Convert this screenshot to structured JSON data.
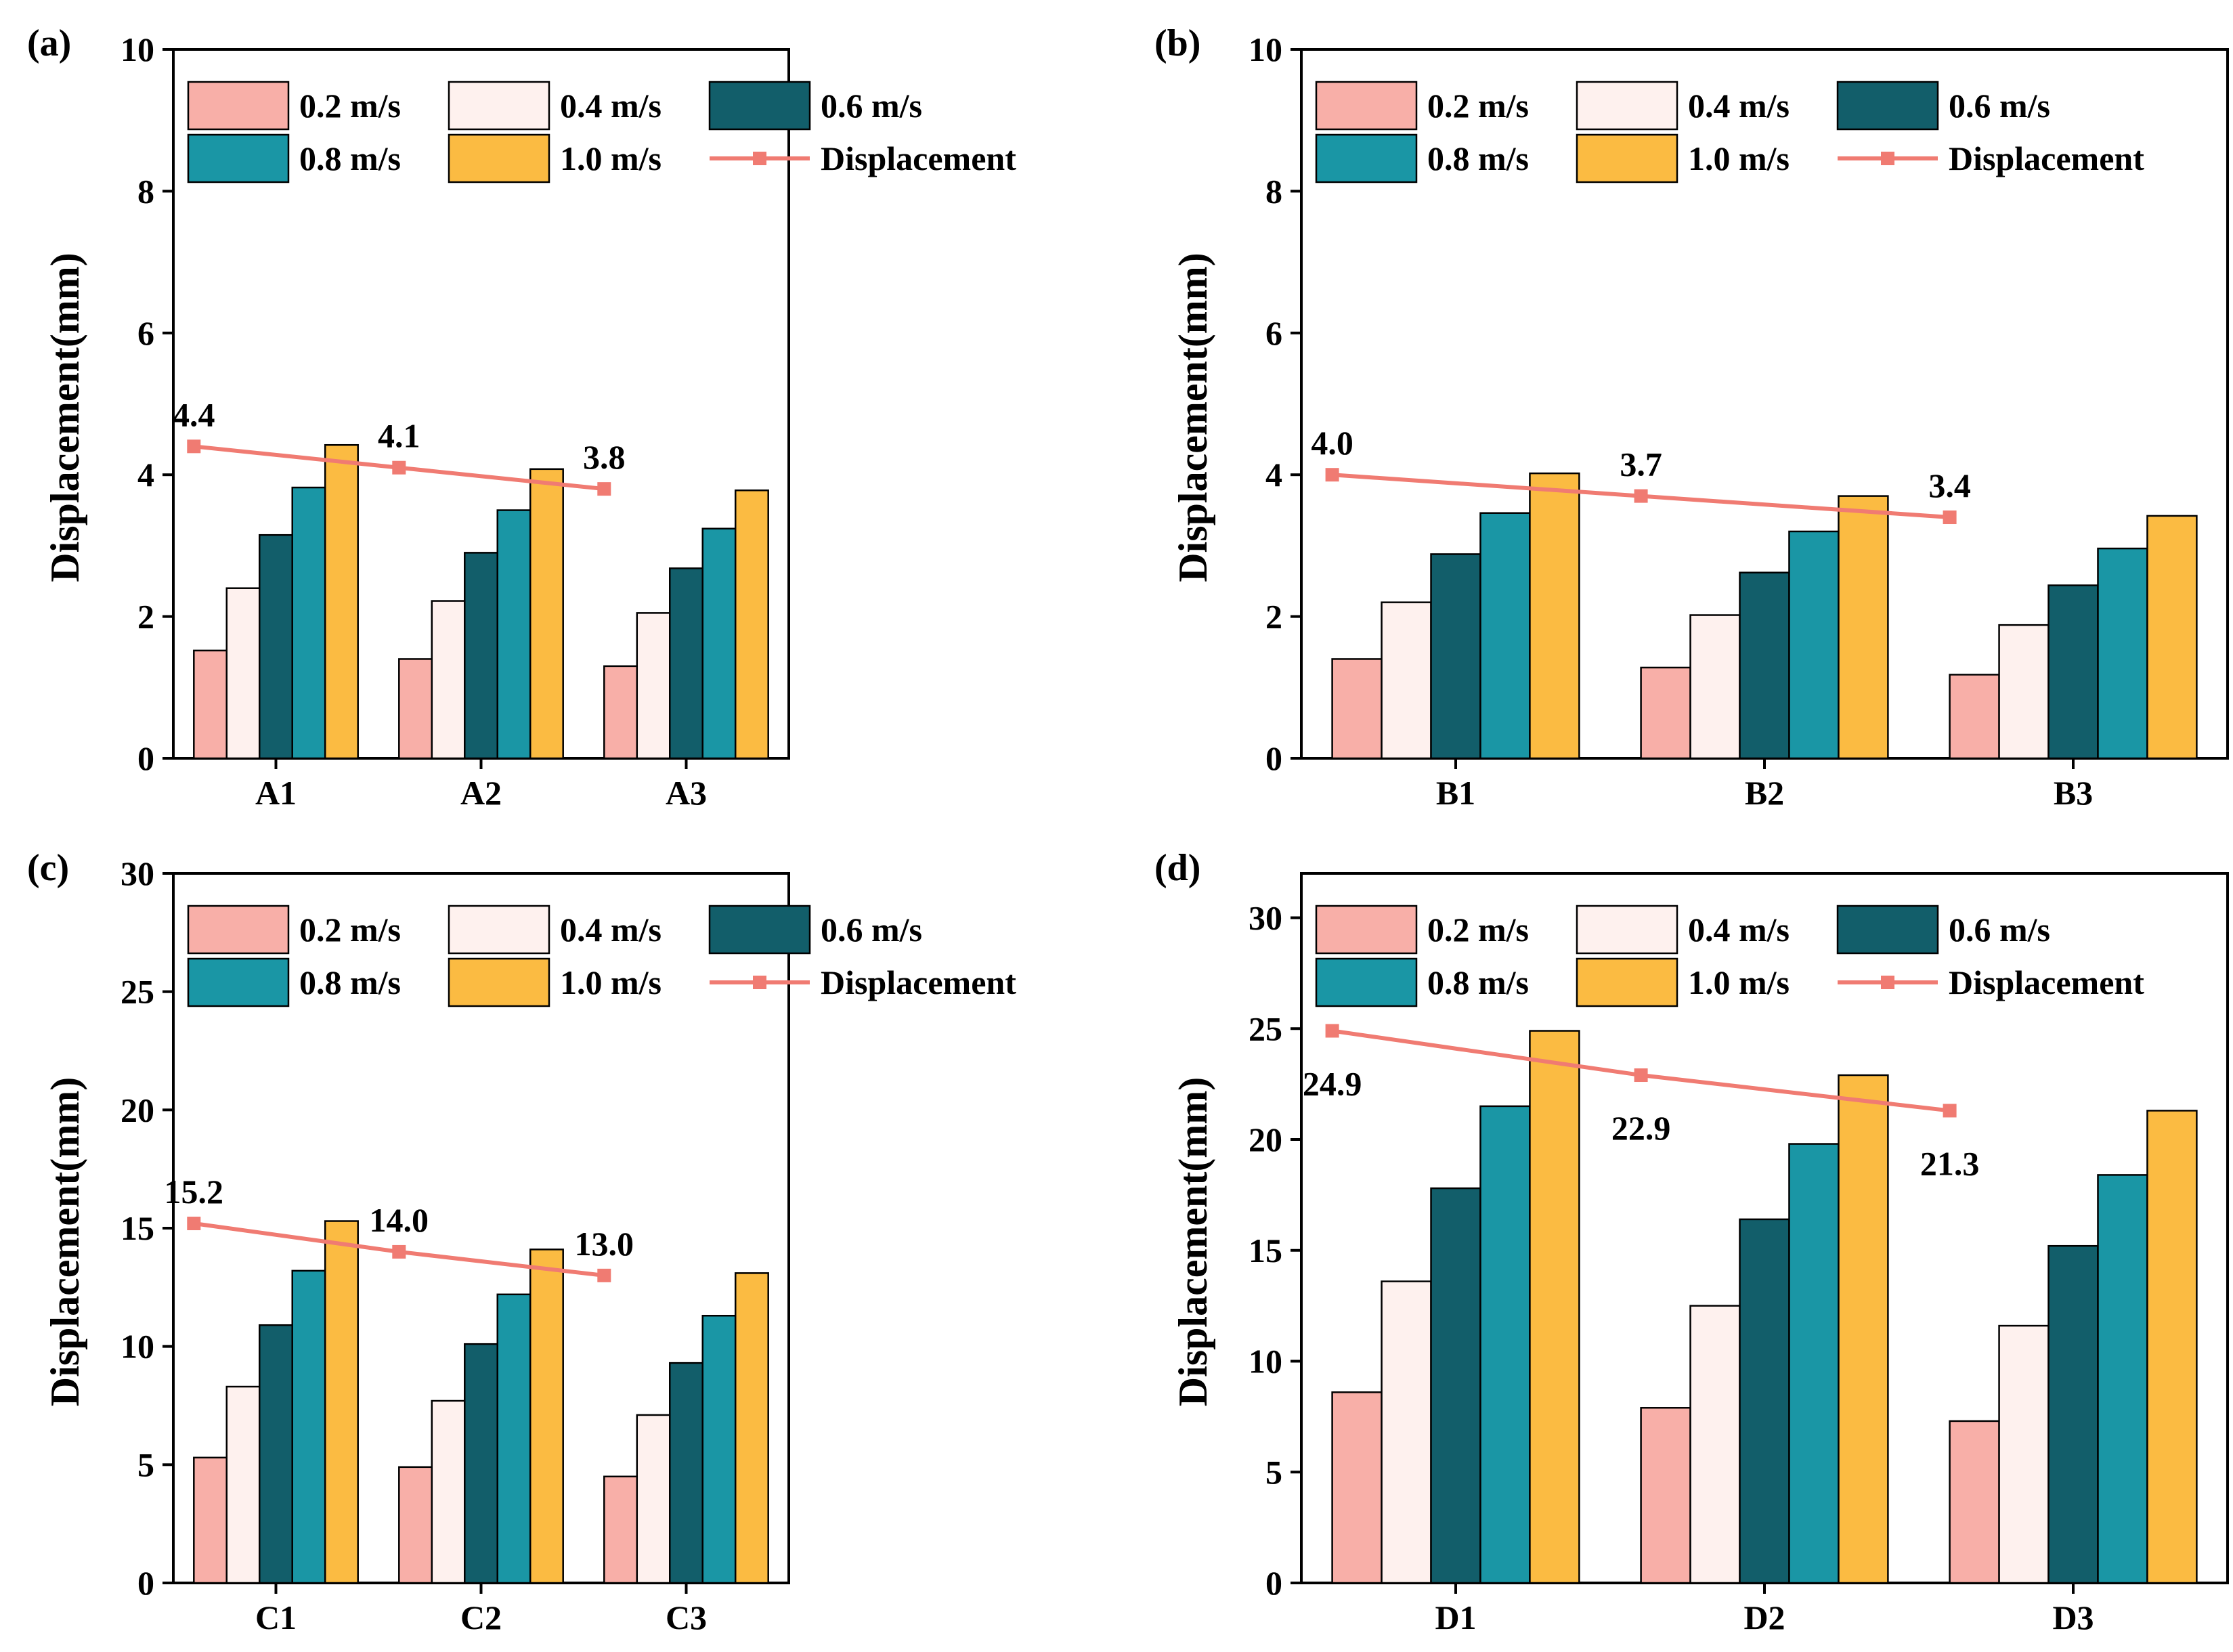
{
  "colors": {
    "s02": "#F8AFA8",
    "s04": "#FEF1EE",
    "s06": "#125E6A",
    "s08": "#1A96A5",
    "s10": "#FBBB42",
    "line": "#F07B72",
    "outline": "#000000"
  },
  "chart_data": [
    {
      "type": "bar",
      "panel": "(a)",
      "ylabel": "Displacement(mm)",
      "ylim": [
        0,
        10
      ],
      "yticks": [
        0,
        2,
        4,
        6,
        8,
        10
      ],
      "categories": [
        "A1",
        "A2",
        "A3"
      ],
      "series": [
        {
          "name": "0.2 m/s",
          "values": [
            1.52,
            1.4,
            1.3
          ]
        },
        {
          "name": "0.4 m/s",
          "values": [
            2.4,
            2.22,
            2.05
          ]
        },
        {
          "name": "0.6 m/s",
          "values": [
            3.15,
            2.9,
            2.68
          ]
        },
        {
          "name": "0.8 m/s",
          "values": [
            3.82,
            3.5,
            3.24
          ]
        },
        {
          "name": "1.0 m/s",
          "values": [
            4.42,
            4.08,
            3.78
          ]
        }
      ],
      "line": {
        "name": "Displacement",
        "values": [
          4.4,
          4.1,
          3.8
        ],
        "labels": [
          "4.4",
          "4.1",
          "3.8"
        ],
        "label_pos": "above"
      }
    },
    {
      "type": "bar",
      "panel": "(b)",
      "ylabel": "Displacement(mm)",
      "ylim": [
        0,
        10
      ],
      "yticks": [
        0,
        2,
        4,
        6,
        8,
        10
      ],
      "categories": [
        "B1",
        "B2",
        "B3"
      ],
      "series": [
        {
          "name": "0.2 m/s",
          "values": [
            1.4,
            1.28,
            1.18
          ]
        },
        {
          "name": "0.4 m/s",
          "values": [
            2.2,
            2.02,
            1.88
          ]
        },
        {
          "name": "0.6 m/s",
          "values": [
            2.88,
            2.62,
            2.44
          ]
        },
        {
          "name": "0.8 m/s",
          "values": [
            3.46,
            3.2,
            2.96
          ]
        },
        {
          "name": "1.0 m/s",
          "values": [
            4.02,
            3.7,
            3.42
          ]
        }
      ],
      "line": {
        "name": "Displacement",
        "values": [
          4.0,
          3.7,
          3.4
        ],
        "labels": [
          "4.0",
          "3.7",
          "3.4"
        ],
        "label_pos": "above"
      }
    },
    {
      "type": "bar",
      "panel": "(c)",
      "ylabel": "Displacement(mm)",
      "ylim": [
        0,
        30
      ],
      "yticks": [
        0,
        5,
        10,
        15,
        20,
        25,
        30
      ],
      "categories": [
        "C1",
        "C2",
        "C3"
      ],
      "series": [
        {
          "name": "0.2 m/s",
          "values": [
            5.3,
            4.9,
            4.5
          ]
        },
        {
          "name": "0.4 m/s",
          "values": [
            8.3,
            7.7,
            7.1
          ]
        },
        {
          "name": "0.6 m/s",
          "values": [
            10.9,
            10.1,
            9.3
          ]
        },
        {
          "name": "0.8 m/s",
          "values": [
            13.2,
            12.2,
            11.3
          ]
        },
        {
          "name": "1.0 m/s",
          "values": [
            15.3,
            14.1,
            13.1
          ]
        }
      ],
      "line": {
        "name": "Displacement",
        "values": [
          15.2,
          14.0,
          13.0
        ],
        "labels": [
          "15.2",
          "14.0",
          "13.0"
        ],
        "label_pos": "above"
      }
    },
    {
      "type": "bar",
      "panel": "(d)",
      "ylabel": "Displacement(mm)",
      "ylim": [
        0,
        32
      ],
      "yticks": [
        0,
        5,
        10,
        15,
        20,
        25,
        30
      ],
      "categories": [
        "D1",
        "D2",
        "D3"
      ],
      "series": [
        {
          "name": "0.2 m/s",
          "values": [
            8.6,
            7.9,
            7.3
          ]
        },
        {
          "name": "0.4 m/s",
          "values": [
            13.6,
            12.5,
            11.6
          ]
        },
        {
          "name": "0.6 m/s",
          "values": [
            17.8,
            16.4,
            15.2
          ]
        },
        {
          "name": "0.8 m/s",
          "values": [
            21.5,
            19.8,
            18.4
          ]
        },
        {
          "name": "1.0 m/s",
          "values": [
            24.9,
            22.9,
            21.3
          ]
        }
      ],
      "line": {
        "name": "Displacement",
        "values": [
          24.9,
          22.9,
          21.3
        ],
        "labels": [
          "24.9",
          "22.9",
          "21.3"
        ],
        "label_pos": "below"
      }
    }
  ]
}
